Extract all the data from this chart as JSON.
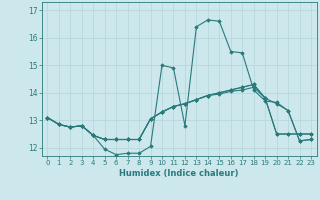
{
  "title": "",
  "xlabel": "Humidex (Indice chaleur)",
  "ylabel": "",
  "xlim": [
    -0.5,
    23.5
  ],
  "ylim": [
    11.7,
    17.3
  ],
  "bg_color": "#cce8ec",
  "line_color": "#2a7a7c",
  "grid_color": "#b8d8dc",
  "lines": [
    [
      13.1,
      12.85,
      12.75,
      12.8,
      12.45,
      11.95,
      11.75,
      11.8,
      11.8,
      12.05,
      15.0,
      14.9,
      12.8,
      16.4,
      16.65,
      16.6,
      15.5,
      15.45,
      14.1,
      13.7,
      13.65,
      13.35,
      12.25,
      12.3
    ],
    [
      13.1,
      12.85,
      12.75,
      12.8,
      12.45,
      12.3,
      12.3,
      12.3,
      12.3,
      13.05,
      13.3,
      13.5,
      13.6,
      13.75,
      13.9,
      14.0,
      14.1,
      14.2,
      14.3,
      13.8,
      13.6,
      13.35,
      12.25,
      12.3
    ],
    [
      13.1,
      12.85,
      12.75,
      12.8,
      12.45,
      12.3,
      12.3,
      12.3,
      12.3,
      13.05,
      13.3,
      13.5,
      13.6,
      13.75,
      13.9,
      14.0,
      14.1,
      14.2,
      14.3,
      13.8,
      12.5,
      12.5,
      12.5,
      12.5
    ],
    [
      13.1,
      12.85,
      12.75,
      12.8,
      12.45,
      12.3,
      12.3,
      12.3,
      12.3,
      13.05,
      13.3,
      13.5,
      13.6,
      13.75,
      13.9,
      13.95,
      14.05,
      14.1,
      14.2,
      13.8,
      12.5,
      12.5,
      12.5,
      12.5
    ]
  ],
  "yticks": [
    12,
    13,
    14,
    15,
    16,
    17
  ],
  "xticks": [
    0,
    1,
    2,
    3,
    4,
    5,
    6,
    7,
    8,
    9,
    10,
    11,
    12,
    13,
    14,
    15,
    16,
    17,
    18,
    19,
    20,
    21,
    22,
    23
  ]
}
